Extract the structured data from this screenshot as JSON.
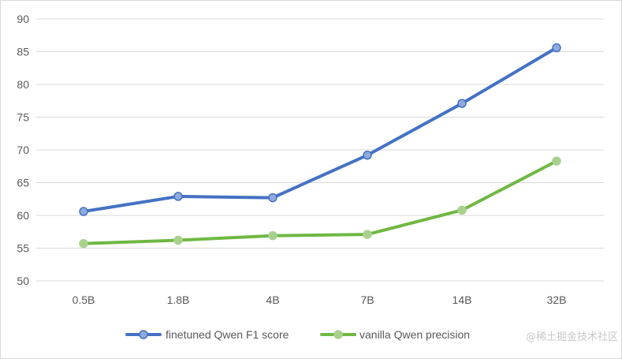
{
  "chart_data": {
    "type": "line",
    "title": "",
    "xlabel": "",
    "ylabel": "",
    "categories": [
      "0.5B",
      "1.8B",
      "4B",
      "7B",
      "14B",
      "32B"
    ],
    "ylim": [
      50,
      90
    ],
    "yticks": [
      50,
      55,
      60,
      65,
      70,
      75,
      80,
      85,
      90
    ],
    "grid": true,
    "legend_position": "bottom",
    "series": [
      {
        "name": "finetuned Qwen F1 score",
        "color": "#4472C4",
        "marker_fill": "#8FAADC",
        "values": [
          60.6,
          62.9,
          62.7,
          69.2,
          77.1,
          85.6
        ]
      },
      {
        "name": "vanilla Qwen precision",
        "color": "#70B843",
        "marker_fill": "#A9D18E",
        "values": [
          55.7,
          56.2,
          56.9,
          57.1,
          60.8,
          68.3
        ]
      }
    ]
  },
  "watermark": "@稀土掘金技术社区"
}
